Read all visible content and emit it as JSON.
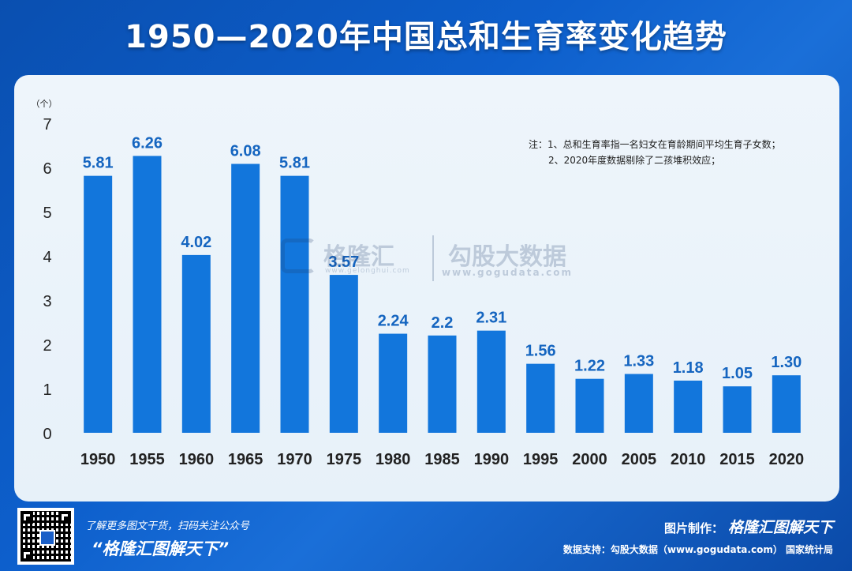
{
  "title": "1950—2020年中国总和生育率变化趋势",
  "chart_data": {
    "type": "bar",
    "unit_label": "（个）",
    "categories": [
      "1950",
      "1955",
      "1960",
      "1965",
      "1970",
      "1975",
      "1980",
      "1985",
      "1990",
      "1995",
      "2000",
      "2005",
      "2010",
      "2015",
      "2020"
    ],
    "values": [
      5.81,
      6.26,
      4.02,
      6.08,
      5.81,
      3.57,
      2.24,
      2.2,
      2.31,
      1.56,
      1.22,
      1.33,
      1.18,
      1.05,
      1.3
    ],
    "value_labels": [
      "5.81",
      "6.26",
      "4.02",
      "6.08",
      "5.81",
      "3.57",
      "2.24",
      "2.2",
      "2.31",
      "1.56",
      "1.22",
      "1.33",
      "1.18",
      "1.05",
      "1.30"
    ],
    "ylim": [
      0,
      7
    ],
    "yticks": [
      "0",
      "1",
      "2",
      "3",
      "4",
      "5",
      "6",
      "7"
    ],
    "bar_color": "#1276dc",
    "label_color": "#1565c0",
    "grid": false
  },
  "notes": {
    "line1": "注：1、总和生育率指一名妇女在育龄期间平均生育子女数；",
    "line2": "2、2020年度数据剔除了二孩堆积效应；"
  },
  "watermark": {
    "name": "格隆汇",
    "site": "www.gelonghui.com",
    "name2": "勾股大数据",
    "site2": "www.gogudata.com"
  },
  "footer": {
    "follow_text": "了解更多图文干货，扫码关注公众号",
    "brand": "“格隆汇图解天下”",
    "credit_label": "图片制作：",
    "credit_logo": "格隆汇图解天下",
    "source": "数据支持：勾股大数据（www.gogudata.com） 国家统计局"
  },
  "colors": {
    "background": "#0d5fcc",
    "panel": "#eaf3fa"
  }
}
